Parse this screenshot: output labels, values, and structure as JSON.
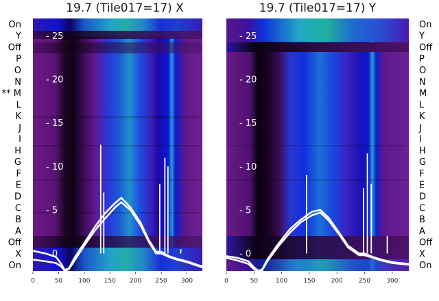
{
  "chart_data": [
    {
      "type": "heatmap",
      "title": "19.7 (Tile017=17) X",
      "row_labels": [
        "On",
        "Y",
        "Off",
        "P",
        "O",
        "N",
        "** M",
        "L",
        "K",
        "J",
        "I",
        "H",
        "G",
        "F",
        "E",
        "D",
        "C",
        "B",
        "A",
        "Off",
        "X",
        "On"
      ],
      "x_ticks": [
        0,
        50,
        100,
        150,
        200,
        250,
        300
      ],
      "xlim": [
        0,
        330
      ],
      "overlay_ylim": [
        -2,
        27
      ],
      "overlay_yticks": [
        0,
        5,
        10,
        15,
        20,
        25
      ],
      "overlay_series": [
        {
          "x": [
            0,
            25,
            45,
            55,
            62,
            70,
            80,
            100,
            120,
            140,
            160,
            172,
            190,
            210,
            225,
            240,
            250,
            265,
            280,
            300,
            330
          ],
          "y": [
            0.3,
            0.0,
            -0.4,
            -1.2,
            -1.9,
            -1.7,
            -0.6,
            1.2,
            3.0,
            4.6,
            5.8,
            6.4,
            5.3,
            3.5,
            1.6,
            0.2,
            0.2,
            -0.3,
            -0.6,
            -0.9,
            -1.5
          ]
        },
        {
          "x": [
            0,
            25,
            45,
            55,
            62,
            70,
            80,
            100,
            120,
            140,
            160,
            172,
            190,
            210,
            225,
            240,
            250,
            265,
            280,
            300,
            330
          ],
          "y": [
            -0.7,
            -0.9,
            -1.1,
            -1.5,
            -2.0,
            -1.8,
            -0.9,
            0.9,
            2.6,
            4.0,
            5.3,
            5.9,
            5.0,
            3.2,
            1.4,
            0.0,
            0.0,
            -0.4,
            -0.7,
            -1.0,
            -1.6
          ]
        }
      ],
      "spikes": [
        {
          "x": 132,
          "y": 12.5
        },
        {
          "x": 138,
          "y": 7.0
        },
        {
          "x": 247,
          "y": 8.0
        },
        {
          "x": 257,
          "y": 11.0
        },
        {
          "x": 263,
          "y": 10.0
        },
        {
          "x": 288,
          "y": 0.5
        }
      ]
    },
    {
      "type": "heatmap",
      "title": "19.7 (Tile017=17) Y",
      "row_labels": [
        "On",
        "Y",
        "Off",
        "P",
        "O",
        "N",
        "M",
        "L",
        "K",
        "J",
        "I",
        "H",
        "G",
        "F",
        "E",
        "D",
        "C",
        "B",
        "A",
        "Off",
        "X",
        "On"
      ],
      "x_ticks": [
        0,
        50,
        100,
        150,
        200,
        250,
        300
      ],
      "xlim": [
        0,
        330
      ],
      "overlay_ylim": [
        -2,
        27
      ],
      "overlay_yticks": [
        0,
        5,
        10,
        15,
        20,
        25
      ],
      "overlay_series": [
        {
          "x": [
            0,
            20,
            40,
            50,
            58,
            65,
            75,
            95,
            115,
            135,
            155,
            170,
            185,
            205,
            220,
            240,
            250,
            265,
            280,
            300,
            330
          ],
          "y": [
            -0.3,
            -0.5,
            -0.9,
            -1.6,
            -2.0,
            -1.8,
            -0.6,
            1.2,
            2.8,
            3.9,
            4.8,
            5.0,
            4.1,
            2.3,
            0.9,
            0.0,
            0.0,
            -0.4,
            -0.7,
            -1.0,
            -1.2
          ]
        },
        {
          "x": [
            0,
            20,
            40,
            50,
            58,
            65,
            75,
            95,
            115,
            135,
            155,
            170,
            185,
            205,
            220,
            240,
            250,
            265,
            280,
            300,
            330
          ],
          "y": [
            -0.5,
            -0.8,
            -1.2,
            -1.8,
            -2.1,
            -1.9,
            -0.8,
            0.9,
            2.4,
            3.6,
            4.4,
            4.7,
            3.8,
            2.1,
            0.7,
            -0.2,
            -0.2,
            -0.5,
            -0.8,
            -1.1,
            -1.3
          ]
        }
      ],
      "spikes": [
        {
          "x": 145,
          "y": 9.0
        },
        {
          "x": 248,
          "y": 7.5
        },
        {
          "x": 255,
          "y": 11.5
        },
        {
          "x": 262,
          "y": 8.0
        },
        {
          "x": 291,
          "y": 2.0
        }
      ]
    }
  ]
}
